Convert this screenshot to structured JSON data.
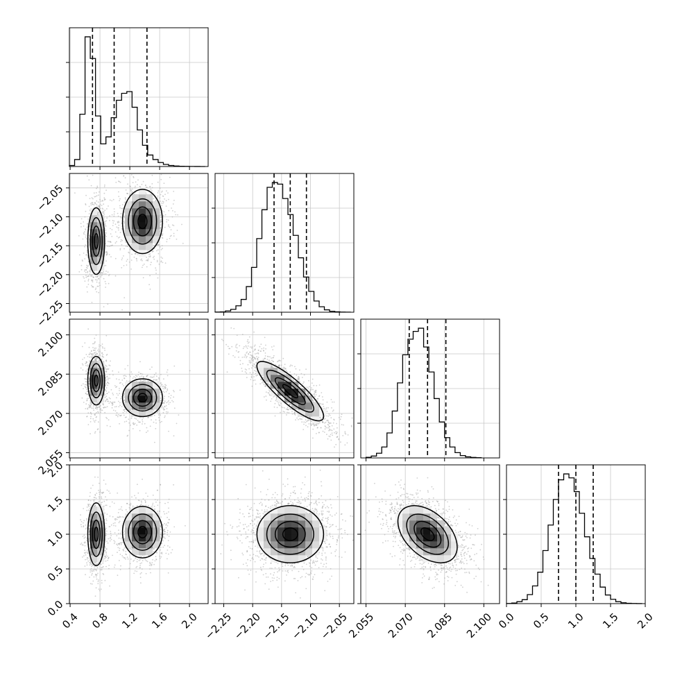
{
  "chart_data": {
    "type": "corner",
    "variables": [
      {
        "ticks": [
          0.4,
          0.8,
          1.2,
          1.6,
          2.0
        ],
        "tick_labels": [
          "0.4",
          "0.8",
          "1.2",
          "1.6",
          "2.0"
        ],
        "range": [
          0.39,
          2.25
        ]
      },
      {
        "ticks": [
          -2.25,
          -2.2,
          -2.15,
          -2.1,
          -2.05
        ],
        "tick_labels": [
          "−2.25",
          "−2.20",
          "−2.15",
          "−2.10",
          "−2.05"
        ],
        "range": [
          -2.265,
          -2.025
        ]
      },
      {
        "ticks": [
          2.055,
          2.07,
          2.085,
          2.1
        ],
        "tick_labels": [
          "2.055",
          "2.070",
          "2.085",
          "2.100"
        ],
        "range": [
          2.053,
          2.106
        ]
      },
      {
        "ticks": [
          0.0,
          0.5,
          1.0,
          1.5,
          2.0
        ],
        "tick_labels": [
          "0.0",
          "0.5",
          "1.0",
          "1.5",
          "2.0"
        ],
        "range": [
          0.0,
          2.0
        ]
      }
    ],
    "histograms": [
      {
        "bins": [
          0.39,
          0.46,
          0.53,
          0.6,
          0.67,
          0.74,
          0.81,
          0.88,
          0.95,
          1.02,
          1.09,
          1.16,
          1.23,
          1.3,
          1.37,
          1.44,
          1.51,
          1.58,
          1.65,
          1.72,
          1.79,
          1.86,
          1.93,
          2.0,
          2.07,
          2.14,
          2.21
        ],
        "counts": [
          30,
          200,
          1500,
          3720,
          3100,
          1450,
          650,
          850,
          1400,
          1900,
          2100,
          2150,
          1700,
          1050,
          610,
          330,
          200,
          115,
          60,
          30,
          15,
          8,
          4,
          2,
          1,
          0
        ],
        "quantiles": [
          0.7,
          0.99,
          1.43
        ]
      },
      {
        "bins": [
          -2.265,
          -2.256,
          -2.247,
          -2.238,
          -2.229,
          -2.22,
          -2.211,
          -2.202,
          -2.193,
          -2.184,
          -2.175,
          -2.166,
          -2.157,
          -2.148,
          -2.139,
          -2.13,
          -2.121,
          -2.112,
          -2.103,
          -2.094,
          -2.085,
          -2.076,
          -2.067,
          -2.058,
          -2.049,
          -2.04,
          -2.031
        ],
        "counts": [
          5,
          10,
          40,
          90,
          200,
          400,
          800,
          1400,
          2300,
          3200,
          3900,
          4050,
          4000,
          3550,
          3050,
          2400,
          1700,
          1100,
          650,
          350,
          170,
          75,
          30,
          12,
          5,
          2
        ],
        "quantiles": [
          -2.163,
          -2.135,
          -2.107
        ]
      },
      {
        "bins": [
          2.055,
          2.057,
          2.059,
          2.061,
          2.063,
          2.065,
          2.067,
          2.069,
          2.071,
          2.073,
          2.075,
          2.077,
          2.079,
          2.081,
          2.083,
          2.085,
          2.087,
          2.089,
          2.091,
          2.093,
          2.095,
          2.097,
          2.099
        ],
        "counts": [
          20,
          60,
          150,
          350,
          800,
          1500,
          2400,
          3300,
          3800,
          4050,
          4150,
          3550,
          2750,
          1900,
          1150,
          650,
          350,
          170,
          75,
          35,
          15,
          8
        ],
        "quantiles": [
          2.0715,
          2.0785,
          2.0855
        ]
      },
      {
        "bins": [
          0.0,
          0.075,
          0.15,
          0.225,
          0.3,
          0.375,
          0.45,
          0.525,
          0.6,
          0.675,
          0.75,
          0.825,
          0.9,
          0.975,
          1.05,
          1.125,
          1.2,
          1.275,
          1.35,
          1.425,
          1.5,
          1.575,
          1.65,
          1.725,
          1.8,
          1.875,
          1.95
        ],
        "counts": [
          5,
          15,
          50,
          100,
          230,
          450,
          800,
          1350,
          2000,
          2650,
          3150,
          3300,
          3200,
          2850,
          2300,
          1700,
          1150,
          750,
          420,
          220,
          110,
          50,
          22,
          8,
          3,
          1
        ],
        "quantiles": [
          0.75,
          1.0,
          1.25
        ]
      }
    ],
    "scatter_style": {
      "point_color": "#a8a8a8",
      "contour_color": "#000000",
      "fill_gradient": [
        "#ffffff",
        "#000000"
      ]
    },
    "pairs": [
      {
        "x": 0,
        "y": 1,
        "components": [
          {
            "center": [
              0.75,
              -2.142
            ],
            "sd": [
              0.055,
              0.028
            ],
            "rho": 0.0,
            "weight": 0.5
          },
          {
            "center": [
              1.37,
              -2.108
            ],
            "sd": [
              0.13,
              0.027
            ],
            "rho": 0.0,
            "weight": 0.5
          }
        ]
      },
      {
        "x": 0,
        "y": 2,
        "components": [
          {
            "center": [
              0.75,
              2.0825
            ],
            "sd": [
              0.055,
              0.0045
            ],
            "rho": 0.0,
            "weight": 0.5
          },
          {
            "center": [
              1.37,
              2.076
            ],
            "sd": [
              0.13,
              0.0035
            ],
            "rho": 0.0,
            "weight": 0.5
          }
        ]
      },
      {
        "x": 1,
        "y": 2,
        "components": [
          {
            "center": [
              -2.135,
              2.0785
            ],
            "sd": [
              0.028,
              0.0055
            ],
            "rho": -0.85,
            "weight": 1.0
          }
        ]
      },
      {
        "x": 0,
        "y": 3,
        "components": [
          {
            "center": [
              0.75,
              1.0
            ],
            "sd": [
              0.055,
              0.22
            ],
            "rho": 0.0,
            "weight": 0.5
          },
          {
            "center": [
              1.37,
              1.03
            ],
            "sd": [
              0.13,
              0.18
            ],
            "rho": 0.0,
            "weight": 0.5
          }
        ]
      },
      {
        "x": 1,
        "y": 3,
        "components": [
          {
            "center": [
              -2.135,
              1.0
            ],
            "sd": [
              0.028,
              0.2
            ],
            "rho": 0.0,
            "weight": 1.0
          }
        ]
      },
      {
        "x": 2,
        "y": 3,
        "components": [
          {
            "center": [
              2.0785,
              1.0
            ],
            "sd": [
              0.0055,
              0.2
            ],
            "rho": -0.45,
            "weight": 1.0
          }
        ]
      }
    ],
    "contour_levels": [
      0.12,
      0.35,
      0.65,
      0.9
    ],
    "grid": true
  }
}
